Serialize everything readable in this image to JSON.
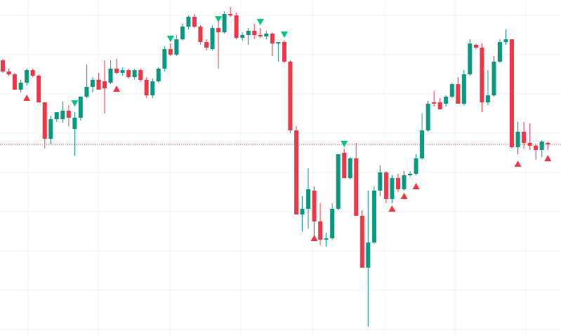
{
  "chart_data": {
    "type": "candlestick",
    "up_color": "#089981",
    "down_color": "#f23645",
    "ylim": [
      0,
      478
    ],
    "xlim": [
      -0.5,
      92.5
    ],
    "xgrid": [
      4.2,
      15.9,
      27.9,
      39.7,
      51.7,
      63.7,
      75.5,
      87.3
    ],
    "ygrid": [
      456,
      400,
      344,
      288,
      232,
      176,
      120,
      64,
      8
    ],
    "price_line": 272,
    "open": [
      392,
      376,
      372,
      350,
      360,
      378,
      370,
      332,
      280,
      308,
      308,
      320,
      294,
      310,
      340,
      354,
      364,
      362,
      360,
      380,
      374,
      378,
      368,
      378,
      364,
      342,
      362,
      380,
      408,
      400,
      422,
      440,
      454,
      440,
      418,
      408,
      438,
      432,
      458,
      456,
      424,
      428,
      434,
      428,
      426,
      430,
      416,
      418,
      390,
      292,
      172,
      180,
      206,
      162,
      136,
      138,
      180,
      260,
      224,
      252,
      170,
      96,
      132,
      206,
      232,
      194,
      224,
      208,
      228,
      230,
      252,
      292,
      332,
      332,
      330,
      340,
      358,
      330,
      372,
      414,
      410,
      332,
      342,
      390,
      418,
      422,
      268,
      290,
      274,
      270,
      264,
      274
    ],
    "high": [
      394,
      380,
      374,
      364,
      380,
      380,
      372,
      332,
      313,
      318,
      333,
      328,
      318,
      340,
      386,
      368,
      374,
      392,
      392,
      394,
      382,
      380,
      380,
      380,
      368,
      366,
      382,
      412,
      416,
      428,
      444,
      456,
      458,
      442,
      422,
      442,
      448,
      462,
      468,
      460,
      432,
      438,
      444,
      438,
      434,
      432,
      418,
      420,
      392,
      298,
      198,
      238,
      212,
      188,
      146,
      188,
      258,
      266,
      254,
      274,
      178,
      206,
      212,
      242,
      234,
      228,
      230,
      234,
      234,
      258,
      316,
      334,
      348,
      338,
      342,
      360,
      368,
      378,
      422,
      416,
      416,
      378,
      398,
      422,
      436,
      422,
      304,
      304,
      302,
      272,
      278,
      276
    ],
    "low": [
      374,
      370,
      350,
      346,
      356,
      368,
      332,
      266,
      272,
      304,
      303,
      298,
      256,
      306,
      338,
      346,
      350,
      316,
      358,
      372,
      370,
      366,
      364,
      362,
      338,
      338,
      360,
      376,
      398,
      398,
      420,
      436,
      438,
      414,
      406,
      406,
      380,
      430,
      454,
      422,
      420,
      414,
      422,
      424,
      422,
      398,
      390,
      388,
      288,
      172,
      148,
      152,
      138,
      128,
      126,
      136,
      178,
      224,
      222,
      170,
      96,
      12,
      130,
      198,
      188,
      188,
      204,
      206,
      226,
      228,
      250,
      290,
      326,
      322,
      326,
      338,
      330,
      328,
      370,
      408,
      318,
      328,
      340,
      388,
      414,
      266,
      258,
      266,
      264,
      250,
      254,
      264
    ],
    "close": [
      376,
      372,
      350,
      360,
      378,
      370,
      332,
      280,
      308,
      318,
      320,
      310,
      310,
      340,
      354,
      364,
      350,
      352,
      380,
      374,
      378,
      368,
      378,
      364,
      342,
      362,
      380,
      408,
      400,
      422,
      440,
      454,
      440,
      418,
      410,
      438,
      432,
      458,
      456,
      424,
      428,
      434,
      428,
      426,
      430,
      416,
      418,
      390,
      292,
      172,
      180,
      208,
      162,
      136,
      138,
      180,
      258,
      224,
      252,
      170,
      96,
      132,
      206,
      232,
      194,
      224,
      208,
      228,
      230,
      252,
      292,
      330,
      330,
      322,
      340,
      358,
      330,
      372,
      416,
      410,
      332,
      342,
      390,
      418,
      422,
      268,
      290,
      274,
      270,
      264,
      276,
      272
    ],
    "buy_signals": {
      "index": [
        4,
        19,
        52,
        65,
        67,
        69,
        86,
        91
      ],
      "values": [
        338,
        351,
        138,
        180,
        198,
        212,
        244,
        252
      ],
      "color": "#f23645"
    },
    "sell_signals": {
      "index": [
        12,
        28,
        36,
        43,
        47,
        57
      ],
      "values": [
        331,
        423,
        451,
        447,
        429,
        273
      ],
      "color": "#00c97a"
    }
  }
}
